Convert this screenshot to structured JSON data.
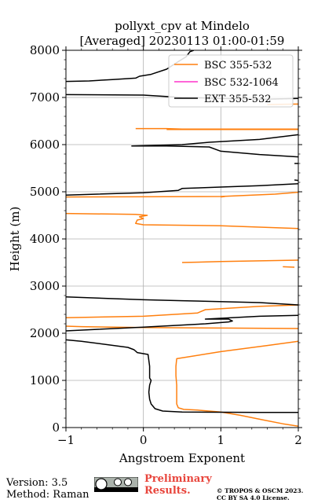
{
  "chart_data": {
    "type": "line",
    "title_line1": "pollyxt_cpv at Mindelo",
    "title_line2": "[Averaged] 20230113 01:00-01:59",
    "xlabel": "Angstroem Exponent",
    "ylabel": "Height (m)",
    "xlim": [
      -1,
      2
    ],
    "ylim": [
      0,
      8000
    ],
    "xticks": [
      "−1",
      "0",
      "1",
      "2"
    ],
    "yticks": [
      "0",
      "1000",
      "2000",
      "3000",
      "4000",
      "5000",
      "6000",
      "7000",
      "8000"
    ],
    "grid": true,
    "legend_position": "top-right",
    "series": [
      {
        "name": "BSC 355-532",
        "color": "#ff7f0e",
        "segments": [
          [
            [
              2.0,
              30
            ],
            [
              1.8,
              80
            ],
            [
              1.55,
              160
            ],
            [
              1.25,
              260
            ],
            [
              1.0,
              330
            ],
            [
              0.7,
              370
            ],
            [
              0.52,
              385
            ],
            [
              0.45,
              420
            ],
            [
              0.43,
              500
            ],
            [
              0.43,
              700
            ],
            [
              0.43,
              900
            ],
            [
              0.42,
              1100
            ],
            [
              0.42,
              1300
            ],
            [
              0.43,
              1460
            ],
            [
              1.0,
              1610
            ],
            [
              1.6,
              1740
            ],
            [
              2.0,
              1830
            ]
          ],
          [
            [
              2.0,
              2100
            ],
            [
              1.0,
              2110
            ],
            [
              0.0,
              2120
            ],
            [
              -0.8,
              2140
            ],
            [
              -1.0,
              2150
            ]
          ],
          [
            [
              -1.0,
              2330
            ],
            [
              0.0,
              2360
            ],
            [
              0.7,
              2430
            ],
            [
              0.8,
              2500
            ],
            [
              1.5,
              2570
            ],
            [
              2.0,
              2600
            ]
          ],
          [
            [
              0.5,
              3500
            ],
            [
              1.0,
              3520
            ],
            [
              2.0,
              3550
            ]
          ],
          [
            [
              1.8,
              3410
            ],
            [
              1.95,
              3400
            ]
          ],
          [
            [
              2.0,
              4220
            ],
            [
              1.0,
              4280
            ],
            [
              0.0,
              4300
            ],
            [
              -0.1,
              4330
            ],
            [
              -0.08,
              4400
            ],
            [
              0.0,
              4430
            ],
            [
              -0.05,
              4470
            ],
            [
              0.05,
              4500
            ],
            [
              -0.1,
              4520
            ],
            [
              -1.0,
              4540
            ]
          ],
          [
            [
              -1.0,
              4890
            ],
            [
              1.0,
              4900
            ],
            [
              1.7,
              4950
            ],
            [
              2.0,
              4990
            ]
          ],
          [
            [
              1.0,
              4890
            ],
            [
              1.05,
              4900
            ]
          ],
          [
            [
              2.0,
              6330
            ],
            [
              0.5,
              6330
            ],
            [
              0.3,
              6340
            ],
            [
              -0.1,
              6340
            ]
          ],
          [
            [
              0.3,
              6320
            ],
            [
              2.0,
              6320
            ]
          ],
          [
            [
              1.6,
              6850
            ],
            [
              2.0,
              6860
            ]
          ]
        ]
      },
      {
        "name": "BSC 532-1064",
        "color": "#ff33cc",
        "segments": []
      },
      {
        "name": "EXT 355-532",
        "color": "#000000",
        "segments": [
          [
            [
              2.0,
              320
            ],
            [
              1.5,
              320
            ],
            [
              1.0,
              325
            ],
            [
              0.5,
              330
            ],
            [
              0.25,
              350
            ],
            [
              0.15,
              400
            ],
            [
              0.1,
              500
            ],
            [
              0.08,
              600
            ],
            [
              0.07,
              750
            ],
            [
              0.08,
              900
            ],
            [
              0.1,
              1000
            ],
            [
              0.08,
              1050
            ],
            [
              0.08,
              1300
            ],
            [
              0.06,
              1550
            ],
            [
              -0.08,
              1590
            ],
            [
              -0.12,
              1650
            ],
            [
              -0.2,
              1700
            ],
            [
              -0.8,
              1830
            ],
            [
              -1.0,
              1860
            ]
          ],
          [
            [
              -1.0,
              2050
            ],
            [
              0.0,
              2130
            ],
            [
              0.8,
              2200
            ],
            [
              1.1,
              2240
            ],
            [
              1.15,
              2260
            ],
            [
              1.1,
              2300
            ],
            [
              0.8,
              2300
            ],
            [
              1.5,
              2360
            ],
            [
              2.0,
              2380
            ]
          ],
          [
            [
              2.0,
              2600
            ],
            [
              1.5,
              2650
            ],
            [
              0.5,
              2690
            ],
            [
              0.0,
              2710
            ],
            [
              -1.0,
              2770
            ]
          ],
          [
            [
              -1.0,
              4930
            ],
            [
              0.0,
              4980
            ],
            [
              0.45,
              5030
            ],
            [
              0.5,
              5070
            ],
            [
              1.0,
              5100
            ],
            [
              1.5,
              5130
            ],
            [
              2.0,
              5170
            ]
          ],
          [
            [
              1.95,
              5250
            ],
            [
              2.0,
              5240
            ]
          ],
          [
            [
              1.95,
              5600
            ],
            [
              2.0,
              5600
            ]
          ],
          [
            [
              2.0,
              5740
            ],
            [
              1.5,
              5790
            ],
            [
              1.0,
              5860
            ],
            [
              0.85,
              5950
            ],
            [
              0.3,
              5970
            ],
            [
              -0.15,
              5970
            ],
            [
              0.5,
              6000
            ],
            [
              0.85,
              6050
            ],
            [
              1.5,
              6110
            ],
            [
              2.0,
              6210
            ]
          ],
          [
            [
              -1.0,
              7060
            ],
            [
              0.0,
              7050
            ],
            [
              0.5,
              7000
            ],
            [
              1.0,
              6980
            ],
            [
              1.5,
              6960
            ],
            [
              2.0,
              6980
            ]
          ],
          [
            [
              -1.0,
              7340
            ],
            [
              -0.7,
              7350
            ],
            [
              -0.4,
              7380
            ],
            [
              -0.1,
              7410
            ],
            [
              -0.05,
              7450
            ],
            [
              0.1,
              7490
            ],
            [
              0.3,
              7600
            ],
            [
              0.45,
              7760
            ],
            [
              0.55,
              7860
            ],
            [
              0.6,
              7970
            ],
            [
              0.65,
              8000
            ]
          ]
        ]
      }
    ]
  },
  "footer": {
    "version": "Version: 3.5",
    "method": "Method: Raman",
    "preliminary_line1": "Preliminary",
    "preliminary_line2": "Results.",
    "copyright_line1": "© TROPOS & OSCM 2023.",
    "copyright_line2": "CC BY SA 4.0 License."
  }
}
